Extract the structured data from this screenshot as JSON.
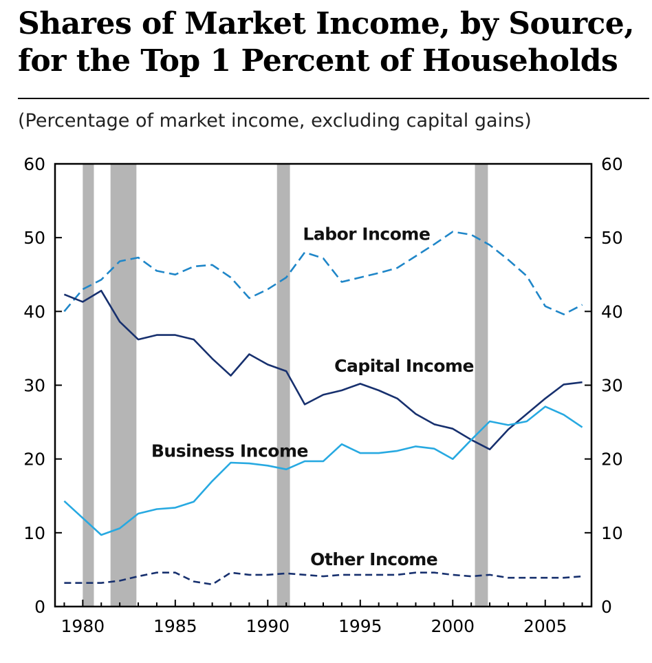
{
  "title": "Shares of Market Income, by Source, for the Top 1 Percent of Households",
  "subtitle": "(Percentage of market income, excluding capital gains)",
  "colors": {
    "labor": "#1f86c8",
    "capital": "#17306e",
    "business": "#27a9e1",
    "other": "#17306e",
    "recession": "#b5b5b5",
    "axis": "#000000"
  },
  "chart_data": {
    "type": "line",
    "title": "Shares of Market Income, by Source, for the Top 1 Percent of Households",
    "subtitle": "(Percentage of market income, excluding capital gains)",
    "xlabel": "",
    "ylabel": "",
    "xlim": [
      1978.5,
      2007.5
    ],
    "ylim": [
      0,
      60
    ],
    "x_ticks": [
      1980,
      1985,
      1990,
      1995,
      2000,
      2005
    ],
    "y_ticks": [
      0,
      10,
      20,
      30,
      40,
      50,
      60
    ],
    "grid": false,
    "recessions": [
      [
        1980.0,
        1980.6
      ],
      [
        1981.5,
        1982.9
      ],
      [
        1990.5,
        1991.2
      ],
      [
        2001.2,
        2001.9
      ]
    ],
    "x": [
      1979,
      1980,
      1981,
      1982,
      1983,
      1984,
      1985,
      1986,
      1987,
      1988,
      1989,
      1990,
      1991,
      1992,
      1993,
      1994,
      1995,
      1996,
      1997,
      1998,
      1999,
      2000,
      2001,
      2002,
      2003,
      2004,
      2005,
      2006,
      2007
    ],
    "series": [
      {
        "name": "Labor Income",
        "style": "dashed",
        "values": [
          40.0,
          43.0,
          44.3,
          46.8,
          47.3,
          45.5,
          45.0,
          46.1,
          46.3,
          44.6,
          41.8,
          43.0,
          44.6,
          48.0,
          47.2,
          44.0,
          44.6,
          45.2,
          45.9,
          47.5,
          49.1,
          50.8,
          50.4,
          49.0,
          47.0,
          44.8,
          40.7,
          39.6,
          40.9
        ]
      },
      {
        "name": "Capital Income",
        "style": "solid",
        "values": [
          42.3,
          41.3,
          42.8,
          38.6,
          36.2,
          36.8,
          36.8,
          36.2,
          33.6,
          31.3,
          34.2,
          32.8,
          31.9,
          27.4,
          28.7,
          29.3,
          30.2,
          29.3,
          28.2,
          26.1,
          24.7,
          24.1,
          22.6,
          21.3,
          24.0,
          26.1,
          28.2,
          30.1,
          30.4
        ]
      },
      {
        "name": "Business Income",
        "style": "solid",
        "values": [
          14.3,
          12.0,
          9.7,
          10.6,
          12.6,
          13.2,
          13.4,
          14.2,
          17.0,
          19.5,
          19.4,
          19.1,
          18.6,
          19.7,
          19.7,
          22.0,
          20.8,
          20.8,
          21.1,
          21.7,
          21.4,
          20.0,
          22.6,
          25.1,
          24.6,
          25.1,
          27.1,
          26.0,
          24.3
        ]
      },
      {
        "name": "Other Income",
        "style": "dotted-dash",
        "values": [
          3.2,
          3.2,
          3.2,
          3.5,
          4.1,
          4.6,
          4.6,
          3.4,
          3.0,
          4.6,
          4.3,
          4.3,
          4.5,
          4.3,
          4.1,
          4.3,
          4.3,
          4.3,
          4.3,
          4.6,
          4.6,
          4.3,
          4.1,
          4.3,
          3.9,
          3.9,
          3.9,
          3.9,
          4.1
        ]
      }
    ],
    "annotations": [
      {
        "text": "Labor Income",
        "x": 1991.9,
        "y": 49.7
      },
      {
        "text": "Capital Income",
        "x": 1993.6,
        "y": 31.8
      },
      {
        "text": "Business Income",
        "x": 1983.7,
        "y": 20.3
      },
      {
        "text": "Other Income",
        "x": 1992.3,
        "y": 5.6
      }
    ]
  }
}
